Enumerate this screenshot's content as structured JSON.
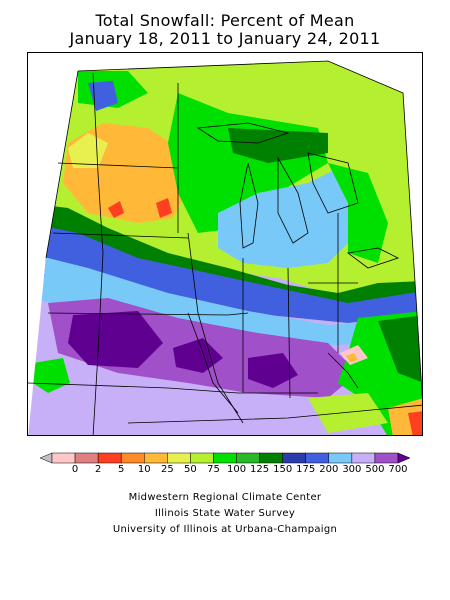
{
  "title": {
    "line1": "Total Snowfall: Percent of Mean",
    "line2": "January 18, 2011 to January 24, 2011"
  },
  "legend": {
    "colors": [
      "#c0c0c0",
      "#ffc8c8",
      "#e08080",
      "#ff4020",
      "#ff8c28",
      "#ffb838",
      "#e8f050",
      "#b4f030",
      "#00e000",
      "#28b828",
      "#008000",
      "#2c3caa",
      "#4060e0",
      "#78c8f8",
      "#c8b0f8",
      "#a050c8",
      "#600090"
    ],
    "labels": [
      "0",
      "2",
      "5",
      "10",
      "25",
      "50",
      "75",
      "100",
      "125",
      "150",
      "175",
      "200",
      "300",
      "500",
      "700"
    ]
  },
  "credits": {
    "line1": "Midwestern Regional Climate Center",
    "line2": "Illinois State Water Survey",
    "line3": "University of Illinois at Urbana-Champaign"
  }
}
